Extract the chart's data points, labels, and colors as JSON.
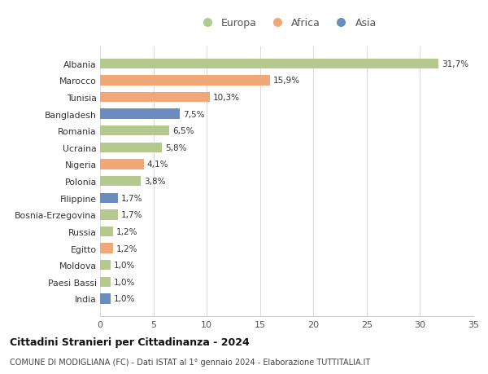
{
  "countries": [
    "Albania",
    "Marocco",
    "Tunisia",
    "Bangladesh",
    "Romania",
    "Ucraina",
    "Nigeria",
    "Polonia",
    "Filippine",
    "Bosnia-Erzegovina",
    "Russia",
    "Egitto",
    "Moldova",
    "Paesi Bassi",
    "India"
  ],
  "values": [
    31.7,
    15.9,
    10.3,
    7.5,
    6.5,
    5.8,
    4.1,
    3.8,
    1.7,
    1.7,
    1.2,
    1.2,
    1.0,
    1.0,
    1.0
  ],
  "labels": [
    "31,7%",
    "15,9%",
    "10,3%",
    "7,5%",
    "6,5%",
    "5,8%",
    "4,1%",
    "3,8%",
    "1,7%",
    "1,7%",
    "1,2%",
    "1,2%",
    "1,0%",
    "1,0%",
    "1,0%"
  ],
  "continents": [
    "Europa",
    "Africa",
    "Africa",
    "Asia",
    "Europa",
    "Europa",
    "Africa",
    "Europa",
    "Asia",
    "Europa",
    "Europa",
    "Africa",
    "Europa",
    "Europa",
    "Asia"
  ],
  "continent_colors": {
    "Europa": "#b5c98e",
    "Africa": "#f0a878",
    "Asia": "#6b8cbf"
  },
  "xlim": [
    0,
    35
  ],
  "xticks": [
    0,
    5,
    10,
    15,
    20,
    25,
    30,
    35
  ],
  "title": "Cittadini Stranieri per Cittadinanza - 2024",
  "subtitle": "COMUNE DI MODIGLIANA (FC) - Dati ISTAT al 1° gennaio 2024 - Elaborazione TUTTITALIA.IT",
  "background_color": "#ffffff",
  "grid_color": "#dddddd",
  "bar_height": 0.6
}
